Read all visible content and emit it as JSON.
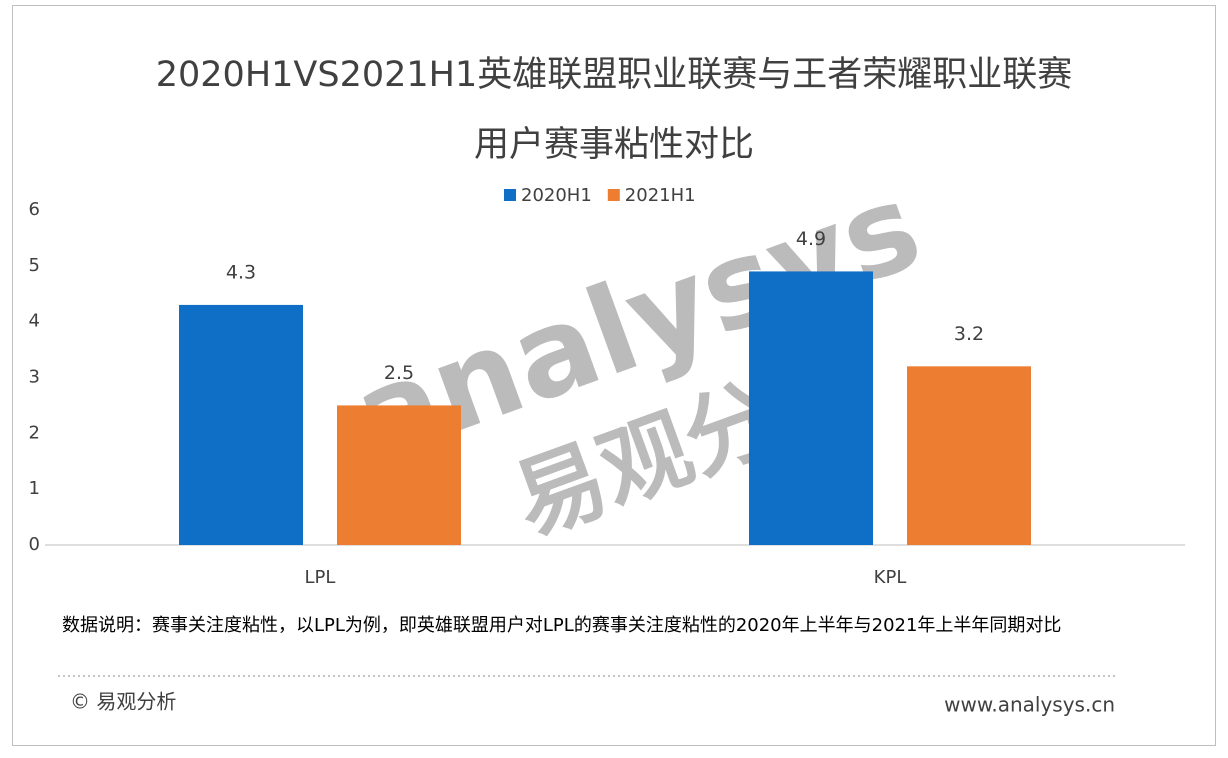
{
  "chart_data": {
    "type": "bar",
    "title": "2020H1VS2021H1英雄联盟职业联赛与王者荣耀职业联赛用户赛事粘性对比",
    "categories": [
      "LPL",
      "KPL"
    ],
    "series": [
      {
        "name": "2020H1",
        "color": "#0f6fc6",
        "values": [
          4.3,
          4.9
        ]
      },
      {
        "name": "2021H1",
        "color": "#ed7d31",
        "values": [
          2.5,
          3.2
        ]
      }
    ],
    "ylim": [
      0,
      6
    ],
    "yticks": [
      0,
      1,
      2,
      3,
      4,
      5,
      6
    ],
    "grid": false,
    "legend": "top",
    "note": "数据说明：赛事关注度粘性，以LPL为例，即英雄联盟用户对LPL的赛事关注度粘性的2020年上半年与2021年上半年同期对比",
    "copyright": "© 易观分析",
    "source": "www.analysys.cn",
    "watermark": [
      "analysys",
      "易观分析"
    ]
  }
}
